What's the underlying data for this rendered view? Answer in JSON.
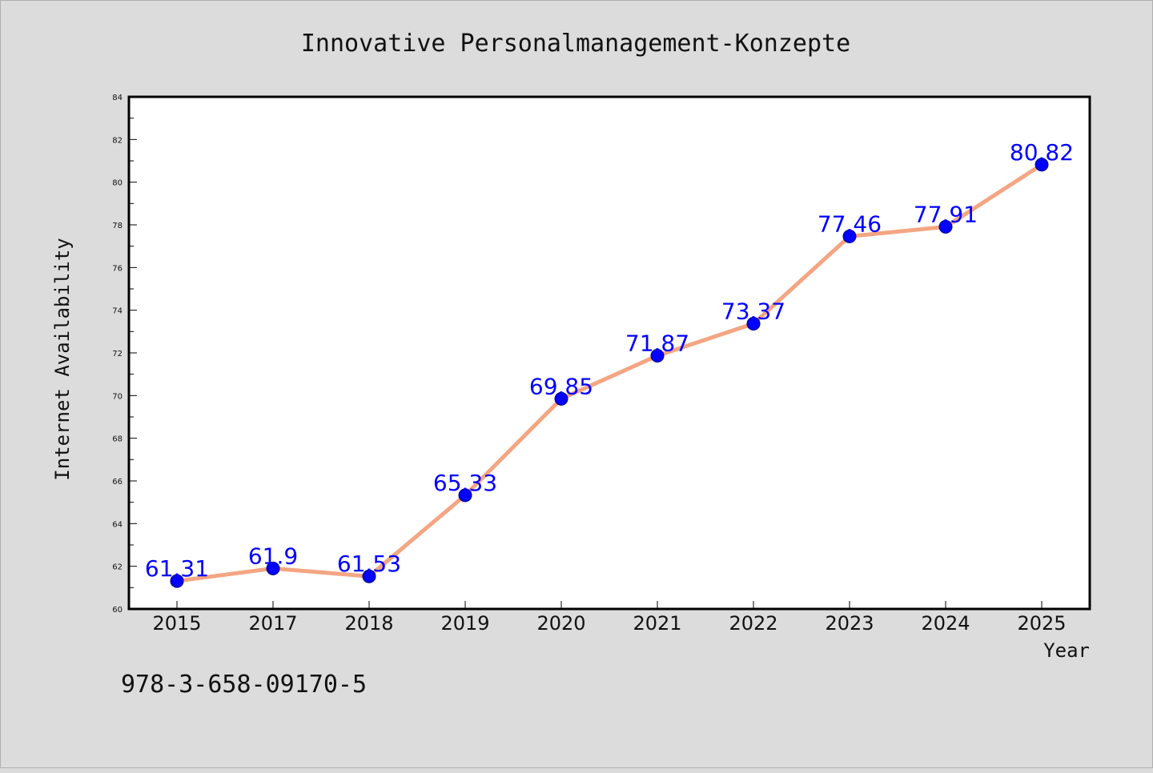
{
  "chart_data": {
    "type": "line",
    "title": "Innovative Personalmanagement-Konzepte",
    "xlabel": "Year",
    "ylabel": "Internet Availability",
    "categories": [
      "2015",
      "2017",
      "2018",
      "2019",
      "2020",
      "2021",
      "2022",
      "2023",
      "2024",
      "2025"
    ],
    "series": [
      {
        "values": [
          61.31,
          61.9,
          61.53,
          65.33,
          69.85,
          71.87,
          73.37,
          77.46,
          77.91,
          80.82
        ],
        "labels": [
          "61.31",
          "61.9",
          "61.53",
          "65.33",
          "69.85",
          "71.87",
          "73.37",
          "77.46",
          "77.91",
          "80.82"
        ],
        "line_color": "#f4a582",
        "marker_color": "#0000ff"
      }
    ],
    "ylim": [
      60,
      84
    ],
    "yticks": [
      "60",
      "62",
      "64",
      "66",
      "68",
      "70",
      "72",
      "74",
      "76",
      "78",
      "80",
      "82",
      "84"
    ],
    "grid": false,
    "data_labels": true
  },
  "annotation": {
    "isbn": "978-3-658-09170-5"
  },
  "colors": {
    "background": "#dcdcdc",
    "plot_background": "#ffffff",
    "line": "#f4a582",
    "marker": "#0000ff",
    "label": "#0000ff"
  }
}
